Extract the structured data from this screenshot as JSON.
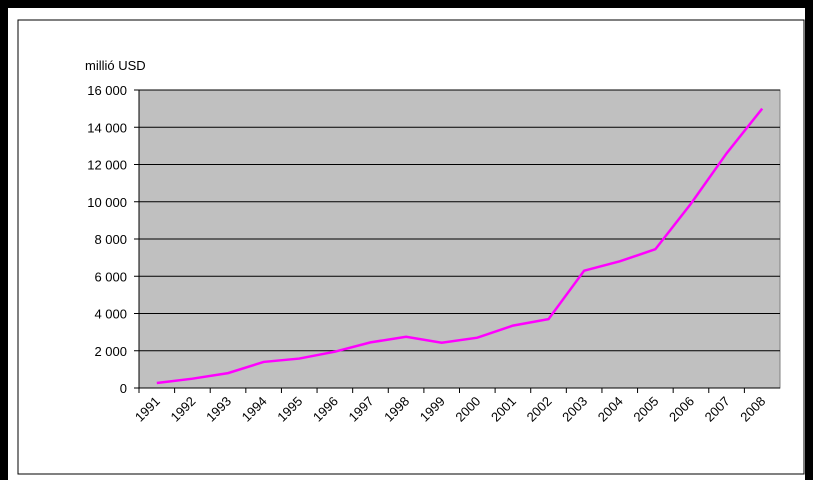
{
  "chart_data": {
    "type": "line",
    "y_label": "millió USD",
    "categories": [
      "1991",
      "1992",
      "1993",
      "1994",
      "1995",
      "1996",
      "1997",
      "1998",
      "1999",
      "2000",
      "2001",
      "2002",
      "2003",
      "2004",
      "2005",
      "2006",
      "2007",
      "2008"
    ],
    "values": [
      270,
      500,
      800,
      1400,
      1580,
      1950,
      2450,
      2750,
      2430,
      2700,
      3350,
      3700,
      6300,
      6800,
      7450,
      9900,
      12600,
      15000
    ],
    "color": "#ff00ff",
    "ylim": [
      0,
      16000
    ],
    "yticks": [
      0,
      {
        "value": 2000,
        "label": "2 000"
      },
      {
        "value": 4000,
        "label": "4 000"
      },
      {
        "value": 6000,
        "label": "6 000"
      },
      {
        "value": 8000,
        "label": "8 000"
      },
      {
        "value": 10000,
        "label": "10 000"
      },
      {
        "value": 12000,
        "label": "12 000"
      },
      {
        "value": 14000,
        "label": "14 000"
      },
      {
        "value": 16000,
        "label": "16 000"
      }
    ],
    "grid": true
  }
}
